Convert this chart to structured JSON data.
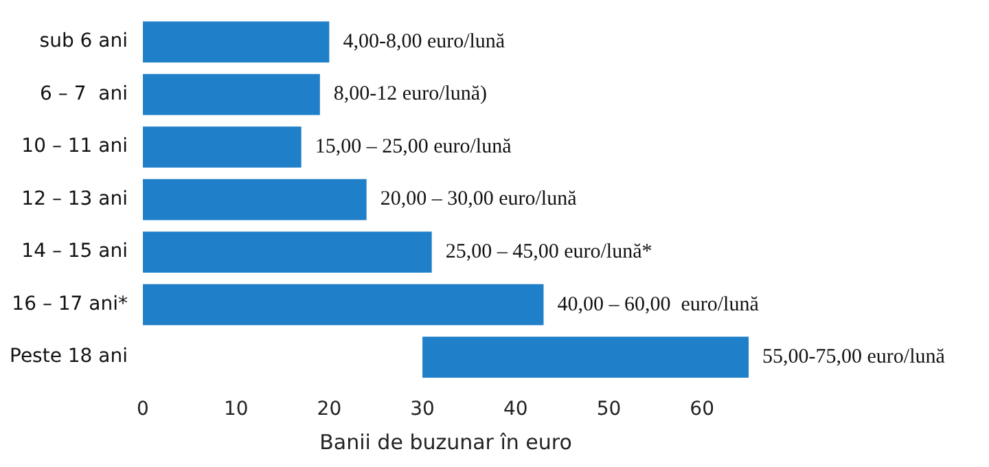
{
  "chart_data": {
    "type": "bar",
    "orientation": "horizontal",
    "categories": [
      "sub 6 ani",
      "6 – 7  ani",
      "10 – 11 ani",
      "12 – 13 ani",
      "14 – 15 ani",
      "16 – 17 ani*",
      "Peste 18 ani"
    ],
    "values": [
      20,
      19,
      17,
      24,
      31,
      43,
      35
    ],
    "base": [
      0,
      0,
      0,
      0,
      0,
      0,
      30
    ],
    "color": "#1f7fc8",
    "annotations": [
      {
        "text": "4,00-8,00 euro/lună",
        "x": 20,
        "y": "sub 6 ani"
      },
      {
        "text": "8,00-12 euro/lună)",
        "x": 19,
        "y": "6 – 7  ani"
      },
      {
        "text": "15,00 – 25,00 euro/lună",
        "x": 17,
        "y": "10 – 11 ani"
      },
      {
        "text": "20,00 – 30,00 euro/lună",
        "x": 24,
        "y": "12 – 13 ani"
      },
      {
        "text": "25,00 – 45,00 euro/lună*",
        "x": 31,
        "y": "14 – 15 ani"
      },
      {
        "text": "40,00 – 60,00  euro/lună",
        "x": 43,
        "y": "16 – 17 ani*"
      },
      {
        "text": "55,00-75,00 euro/lună",
        "x": 65,
        "y": "Peste 18 ani"
      }
    ],
    "xlabel": "Banii de buzunar în euro",
    "xlim": [
      0,
      65
    ],
    "xticks": [
      0,
      10,
      20,
      30,
      40,
      50,
      60
    ],
    "grid": false,
    "legend": false
  }
}
